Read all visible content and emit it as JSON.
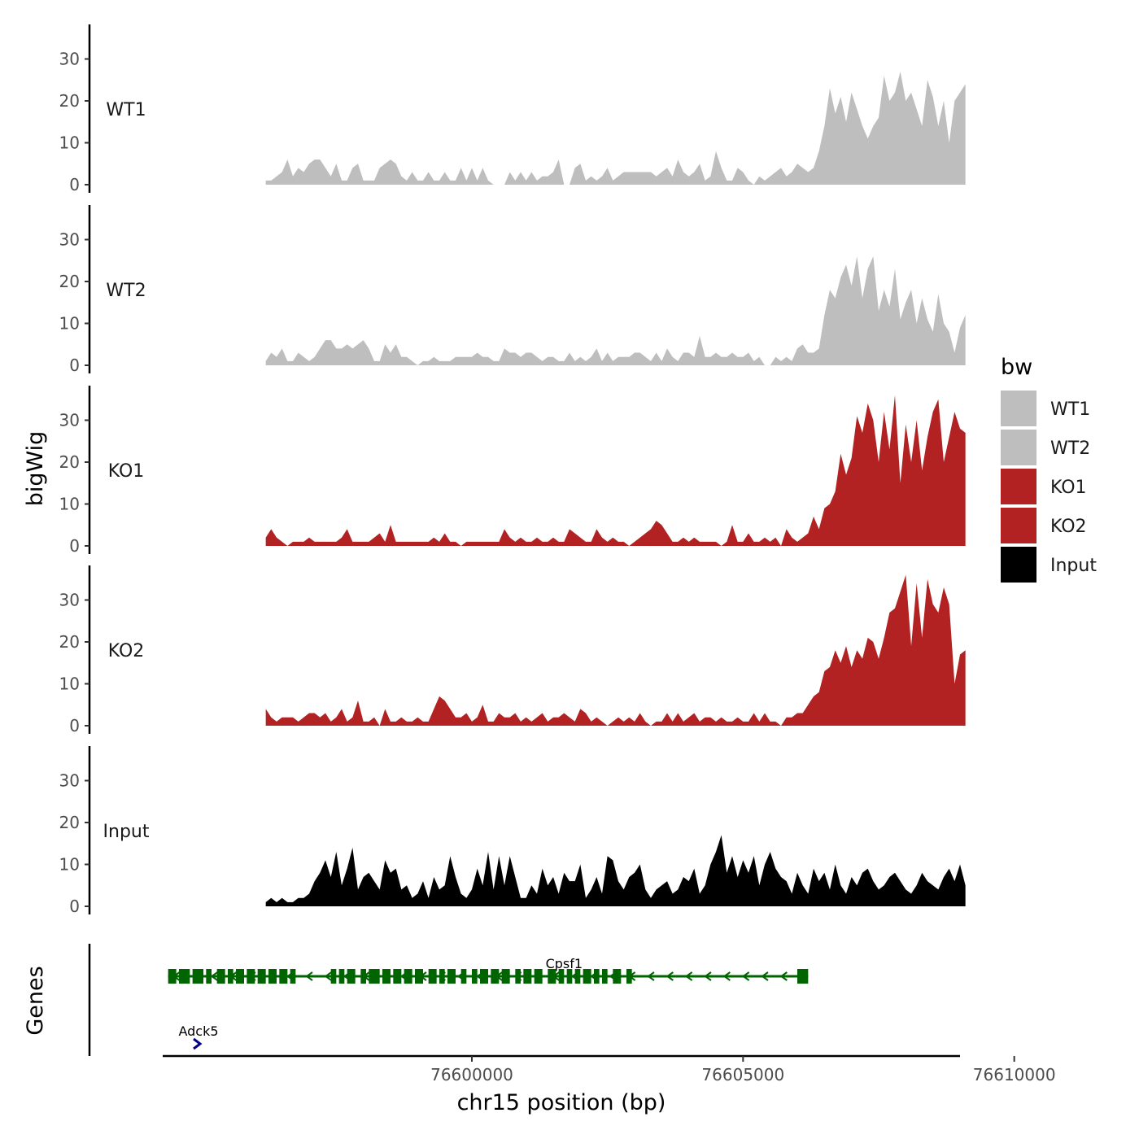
{
  "chart_data": {
    "type": "area",
    "title": "",
    "xlabel": "chr15 position (bp)",
    "ylabel": "bigWig",
    "gene_panel_label": "Genes",
    "xlim": [
      76594300,
      76609000
    ],
    "x_ticks": [
      {
        "value": 76600000,
        "label": "76600000"
      },
      {
        "value": 76605000,
        "label": "76605000"
      },
      {
        "value": 76610000,
        "label": "76610000"
      }
    ],
    "ylim": [
      0,
      38
    ],
    "y_ticks": [
      {
        "value": 0,
        "label": "0"
      },
      {
        "value": 10,
        "label": "10"
      },
      {
        "value": 20,
        "label": "20"
      },
      {
        "value": 30,
        "label": "30"
      }
    ],
    "x_start": 76596200,
    "x_step": 100,
    "series": [
      {
        "name": "WT1",
        "color": "#bebebe",
        "values": [
          1,
          1,
          2,
          3,
          6,
          2,
          4,
          3,
          5,
          6,
          6,
          4,
          2,
          5,
          1,
          1,
          4,
          5,
          1,
          1,
          1,
          4,
          5,
          6,
          5,
          2,
          1,
          3,
          1,
          1,
          3,
          1,
          1,
          3,
          1,
          1,
          4,
          1,
          4,
          1,
          4,
          1,
          0,
          0,
          0,
          3,
          1,
          3,
          1,
          3,
          1,
          2,
          2,
          3,
          6,
          0,
          0,
          4,
          5,
          1,
          2,
          1,
          2,
          4,
          1,
          2,
          3,
          3,
          3,
          3,
          3,
          3,
          2,
          3,
          4,
          2,
          6,
          3,
          2,
          3,
          5,
          1,
          2,
          8,
          4,
          1,
          1,
          4,
          3,
          1,
          0,
          2,
          1,
          2,
          3,
          4,
          2,
          3,
          5,
          4,
          3,
          4,
          8,
          14,
          23,
          17,
          21,
          15,
          22,
          18,
          14,
          11,
          14,
          16,
          26,
          20,
          22,
          27,
          20,
          22,
          18,
          14,
          25,
          21,
          14,
          20,
          10,
          20,
          22,
          24
        ]
      },
      {
        "name": "WT2",
        "color": "#bebebe",
        "values": [
          1,
          3,
          2,
          4,
          1,
          1,
          3,
          2,
          1,
          2,
          4,
          6,
          6,
          4,
          4,
          5,
          4,
          5,
          6,
          4,
          1,
          1,
          5,
          3,
          5,
          2,
          2,
          1,
          0,
          1,
          1,
          2,
          1,
          1,
          1,
          2,
          2,
          2,
          2,
          3,
          2,
          2,
          1,
          1,
          4,
          3,
          3,
          2,
          3,
          3,
          2,
          1,
          2,
          2,
          1,
          1,
          3,
          1,
          2,
          1,
          2,
          4,
          1,
          3,
          1,
          2,
          2,
          2,
          3,
          3,
          2,
          1,
          3,
          1,
          4,
          2,
          1,
          3,
          3,
          2,
          7,
          2,
          2,
          3,
          2,
          2,
          3,
          2,
          2,
          3,
          1,
          2,
          0,
          0,
          2,
          1,
          2,
          1,
          4,
          5,
          3,
          3,
          4,
          12,
          18,
          16,
          21,
          24,
          19,
          26,
          16,
          23,
          26,
          13,
          18,
          14,
          23,
          11,
          15,
          18,
          10,
          16,
          11,
          8,
          17,
          10,
          8,
          3,
          9,
          12
        ]
      },
      {
        "name": "KO1",
        "color": "#b22222",
        "values": [
          2,
          4,
          2,
          1,
          0,
          1,
          1,
          1,
          2,
          1,
          1,
          1,
          1,
          1,
          2,
          4,
          1,
          1,
          1,
          1,
          2,
          3,
          1,
          5,
          1,
          1,
          1,
          1,
          1,
          1,
          1,
          2,
          1,
          3,
          1,
          1,
          0,
          1,
          1,
          1,
          1,
          1,
          1,
          1,
          4,
          2,
          1,
          2,
          1,
          1,
          2,
          1,
          1,
          2,
          1,
          1,
          4,
          3,
          2,
          1,
          1,
          4,
          2,
          1,
          2,
          1,
          1,
          0,
          1,
          2,
          3,
          4,
          6,
          5,
          3,
          1,
          1,
          2,
          1,
          2,
          1,
          1,
          1,
          1,
          0,
          1,
          5,
          1,
          1,
          3,
          1,
          1,
          2,
          1,
          2,
          0,
          4,
          2,
          1,
          2,
          3,
          7,
          4,
          9,
          10,
          13,
          22,
          17,
          21,
          31,
          27,
          34,
          30,
          20,
          32,
          23,
          36,
          15,
          29,
          20,
          30,
          18,
          26,
          32,
          35,
          20,
          26,
          32,
          28,
          27
        ]
      },
      {
        "name": "KO2",
        "color": "#b22222",
        "values": [
          4,
          2,
          1,
          2,
          2,
          2,
          1,
          2,
          3,
          3,
          2,
          3,
          1,
          2,
          4,
          1,
          2,
          6,
          1,
          1,
          2,
          0,
          4,
          1,
          1,
          2,
          1,
          1,
          2,
          1,
          1,
          4,
          7,
          6,
          4,
          2,
          2,
          3,
          1,
          2,
          5,
          1,
          1,
          3,
          2,
          2,
          3,
          1,
          2,
          1,
          2,
          3,
          1,
          2,
          2,
          3,
          2,
          1,
          4,
          3,
          1,
          2,
          1,
          0,
          1,
          2,
          1,
          2,
          1,
          3,
          1,
          0,
          1,
          1,
          3,
          1,
          3,
          1,
          2,
          3,
          1,
          2,
          2,
          1,
          2,
          1,
          1,
          2,
          1,
          1,
          3,
          1,
          3,
          1,
          1,
          0,
          2,
          2,
          3,
          3,
          5,
          7,
          8,
          13,
          14,
          18,
          15,
          19,
          14,
          18,
          16,
          21,
          20,
          16,
          21,
          27,
          28,
          32,
          36,
          19,
          34,
          21,
          35,
          29,
          27,
          33,
          29,
          10,
          17,
          18
        ]
      },
      {
        "name": "Input",
        "color": "#000000",
        "values": [
          1,
          2,
          1,
          2,
          1,
          1,
          2,
          2,
          3,
          6,
          8,
          11,
          7,
          13,
          5,
          9,
          14,
          4,
          7,
          8,
          6,
          4,
          11,
          8,
          9,
          4,
          5,
          2,
          3,
          6,
          2,
          7,
          4,
          5,
          12,
          7,
          3,
          2,
          4,
          9,
          5,
          13,
          4,
          12,
          5,
          12,
          7,
          2,
          2,
          5,
          3,
          9,
          5,
          7,
          3,
          8,
          6,
          6,
          10,
          2,
          4,
          7,
          3,
          12,
          11,
          6,
          4,
          7,
          8,
          10,
          4,
          2,
          4,
          5,
          6,
          3,
          4,
          7,
          6,
          9,
          3,
          5,
          10,
          13,
          17,
          8,
          12,
          7,
          11,
          8,
          12,
          5,
          10,
          13,
          9,
          7,
          6,
          3,
          8,
          5,
          3,
          9,
          6,
          8,
          4,
          10,
          5,
          3,
          7,
          5,
          8,
          9,
          6,
          4,
          5,
          7,
          8,
          6,
          4,
          3,
          5,
          8,
          6,
          5,
          4,
          7,
          9,
          6,
          10,
          5
        ]
      }
    ],
    "legend": {
      "title": "bw",
      "position": "right",
      "items": [
        "WT1",
        "WT2",
        "KO1",
        "KO2",
        "Input"
      ]
    },
    "genes": [
      {
        "name": "Cpsf1",
        "color": "#006400",
        "strand": "-",
        "start": 76594400,
        "end": 76606200,
        "exons": [
          [
            76594400,
            76594550
          ],
          [
            76594600,
            76594800
          ],
          [
            76594850,
            76595050
          ],
          [
            76595100,
            76595200
          ],
          [
            76595300,
            76595450
          ],
          [
            76595500,
            76595600
          ],
          [
            76595650,
            76595800
          ],
          [
            76595850,
            76596000
          ],
          [
            76596050,
            76596200
          ],
          [
            76596250,
            76596400
          ],
          [
            76596450,
            76596600
          ],
          [
            76596650,
            76596750
          ],
          [
            76597400,
            76597500
          ],
          [
            76597550,
            76597650
          ],
          [
            76597700,
            76597850
          ],
          [
            76597950,
            76598050
          ],
          [
            76598100,
            76598300
          ],
          [
            76598350,
            76598500
          ],
          [
            76598550,
            76598700
          ],
          [
            76598750,
            76598900
          ],
          [
            76598950,
            76599100
          ],
          [
            76599200,
            76599350
          ],
          [
            76599400,
            76599500
          ],
          [
            76599550,
            76599700
          ],
          [
            76599800,
            76599900
          ],
          [
            76600000,
            76600100
          ],
          [
            76600150,
            76600300
          ],
          [
            76600350,
            76600500
          ],
          [
            76600550,
            76600700
          ],
          [
            76600800,
            76600900
          ],
          [
            76600950,
            76601100
          ],
          [
            76601150,
            76601300
          ],
          [
            76601400,
            76601550
          ],
          [
            76601600,
            76601700
          ],
          [
            76601750,
            76601850
          ],
          [
            76601900,
            76602000
          ],
          [
            76602050,
            76602200
          ],
          [
            76602250,
            76602350
          ],
          [
            76602400,
            76602500
          ],
          [
            76602600,
            76602750
          ],
          [
            76602850,
            76602950
          ],
          [
            76606000,
            76606200
          ]
        ],
        "label_position": 76601700
      },
      {
        "name": "Adck5",
        "color": "#00008b",
        "strand": "+",
        "start": 76594300,
        "end": 76594450,
        "exons": [],
        "label_position": 76594300
      }
    ]
  }
}
